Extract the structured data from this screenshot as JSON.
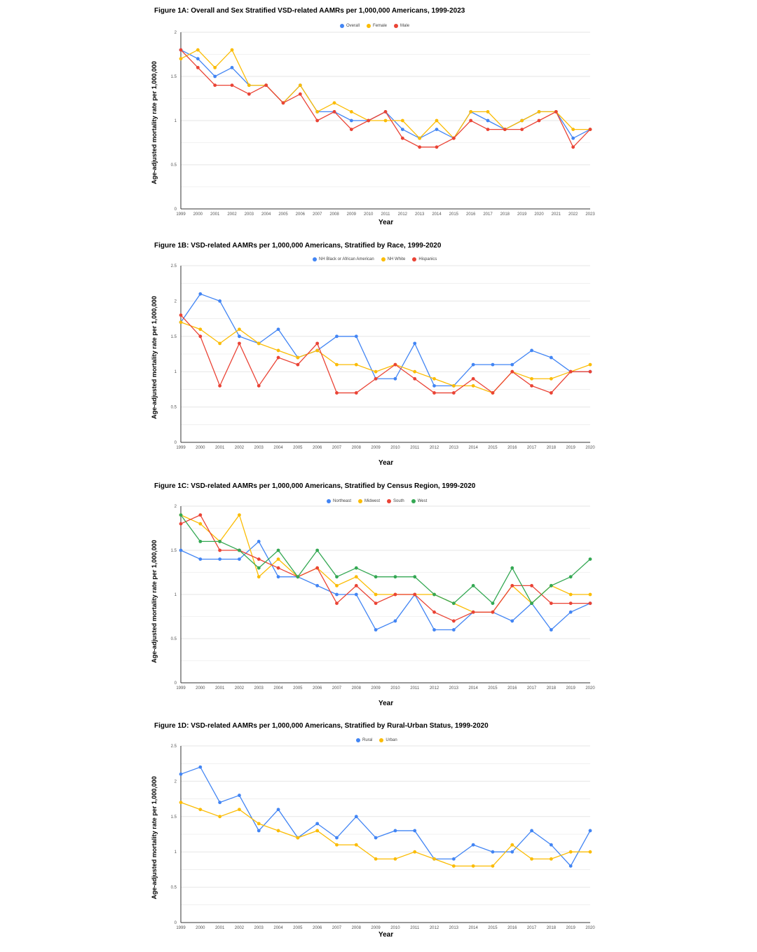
{
  "colors": {
    "blue": "#4285f4",
    "yellow": "#fbbc04",
    "red": "#ea4335",
    "green": "#34a853",
    "grid": "#e6e6e6",
    "axis": "#333333"
  },
  "chart_data": [
    {
      "id": "fig1a",
      "type": "line",
      "title": "Figure 1A: Overall and Sex Stratified VSD-related AAMRs per 1,000,000 Americans, 1999-2023",
      "xlabel": "Year",
      "ylabel": "Age-adjusted mortality rate per 1,000,000",
      "ylim": [
        0,
        2
      ],
      "yticks": [
        "0",
        "0.5",
        "1",
        "1.5",
        "2"
      ],
      "ytick_values": [
        0,
        0.5,
        1,
        1.5,
        2
      ],
      "grid": true,
      "legend_position": "top-center",
      "categories": [
        "1999",
        "2000",
        "2001",
        "2002",
        "2003",
        "2004",
        "2005",
        "2006",
        "2007",
        "2008",
        "2009",
        "2010",
        "2011",
        "2012",
        "2013",
        "2014",
        "2015",
        "2016",
        "2017",
        "2018",
        "2019",
        "2020",
        "2021",
        "2022",
        "2023"
      ],
      "series": [
        {
          "name": "Overall",
          "color": "#4285f4",
          "values": [
            1.8,
            1.7,
            1.5,
            1.6,
            1.4,
            1.4,
            1.2,
            1.4,
            1.1,
            1.1,
            1.0,
            1.0,
            1.1,
            0.9,
            0.8,
            0.9,
            0.8,
            1.1,
            1.0,
            0.9,
            1.0,
            1.1,
            1.1,
            0.8,
            0.9
          ]
        },
        {
          "name": "Female",
          "color": "#fbbc04",
          "values": [
            1.7,
            1.8,
            1.6,
            1.8,
            1.4,
            1.4,
            1.2,
            1.4,
            1.1,
            1.2,
            1.1,
            1.0,
            1.0,
            1.0,
            0.8,
            1.0,
            0.8,
            1.1,
            1.1,
            0.9,
            1.0,
            1.1,
            1.1,
            0.9,
            0.9
          ]
        },
        {
          "name": "Male",
          "color": "#ea4335",
          "values": [
            1.8,
            1.6,
            1.4,
            1.4,
            1.3,
            1.4,
            1.2,
            1.3,
            1.0,
            1.1,
            0.9,
            1.0,
            1.1,
            0.8,
            0.7,
            0.7,
            0.8,
            1.0,
            0.9,
            0.9,
            0.9,
            1.0,
            1.1,
            0.7,
            0.9
          ]
        }
      ]
    },
    {
      "id": "fig1b",
      "type": "line",
      "title": "Figure 1B: VSD-related AAMRs per 1,000,000 Americans, Stratified by Race, 1999-2020",
      "xlabel": "Year",
      "ylabel": "Age-adjusted mortality rate per 1,000,000",
      "ylim": [
        0,
        2.5
      ],
      "yticks": [
        "0",
        "0.5",
        "1",
        "1.5",
        "2",
        "2.5"
      ],
      "ytick_values": [
        0,
        0.5,
        1,
        1.5,
        2,
        2.5
      ],
      "grid": true,
      "legend_position": "top-center",
      "categories": [
        "1999",
        "2000",
        "2001",
        "2002",
        "2003",
        "2004",
        "2005",
        "2006",
        "2007",
        "2008",
        "2009",
        "2010",
        "2011",
        "2012",
        "2013",
        "2014",
        "2015",
        "2016",
        "2017",
        "2018",
        "2019",
        "2020"
      ],
      "series": [
        {
          "name": "NH Black or African American",
          "color": "#4285f4",
          "values": [
            1.7,
            2.1,
            2.0,
            1.5,
            1.4,
            1.6,
            1.2,
            1.3,
            1.5,
            1.5,
            0.9,
            0.9,
            1.4,
            0.8,
            0.8,
            1.1,
            1.1,
            1.1,
            1.3,
            1.2,
            1.0,
            1.0
          ]
        },
        {
          "name": "NH White",
          "color": "#fbbc04",
          "values": [
            1.7,
            1.6,
            1.4,
            1.6,
            1.4,
            1.3,
            1.2,
            1.3,
            1.1,
            1.1,
            1.0,
            1.1,
            1.0,
            0.9,
            0.8,
            0.8,
            0.7,
            1.0,
            0.9,
            0.9,
            1.0,
            1.1
          ]
        },
        {
          "name": "Hispanics",
          "color": "#ea4335",
          "values": [
            1.8,
            1.5,
            0.8,
            1.4,
            0.8,
            1.2,
            1.1,
            1.4,
            0.7,
            0.7,
            0.9,
            1.1,
            0.9,
            0.7,
            0.7,
            0.9,
            0.7,
            1.0,
            0.8,
            0.7,
            1.0,
            1.0
          ]
        }
      ]
    },
    {
      "id": "fig1c",
      "type": "line",
      "title": "Figure 1C: VSD-related AAMRs per 1,000,000 Americans, Stratified by Census Region, 1999-2020",
      "xlabel": "Year",
      "ylabel": "Age-adjusted mortality rate per 1,000,000",
      "ylim": [
        0,
        2
      ],
      "yticks": [
        "0",
        "0.5",
        "1",
        "1.5",
        "2"
      ],
      "ytick_values": [
        0,
        0.5,
        1,
        1.5,
        2
      ],
      "grid": true,
      "legend_position": "top-center",
      "categories": [
        "1999",
        "2000",
        "2001",
        "2002",
        "2003",
        "2004",
        "2005",
        "2006",
        "2007",
        "2008",
        "2009",
        "2010",
        "2011",
        "2012",
        "2013",
        "2014",
        "2015",
        "2016",
        "2017",
        "2018",
        "2019",
        "2020"
      ],
      "series": [
        {
          "name": "Northeast",
          "color": "#4285f4",
          "values": [
            1.5,
            1.4,
            1.4,
            1.4,
            1.6,
            1.2,
            1.2,
            1.1,
            1.0,
            1.0,
            0.6,
            0.7,
            1.0,
            0.6,
            0.6,
            0.8,
            0.8,
            0.7,
            0.9,
            0.6,
            0.8,
            0.9
          ]
        },
        {
          "name": "Midwest",
          "color": "#fbbc04",
          "values": [
            1.9,
            1.8,
            1.6,
            1.9,
            1.2,
            1.4,
            1.2,
            1.3,
            1.1,
            1.2,
            1.0,
            1.0,
            1.0,
            1.0,
            0.9,
            0.8,
            0.8,
            1.1,
            0.9,
            1.1,
            1.0,
            1.0
          ]
        },
        {
          "name": "South",
          "color": "#ea4335",
          "values": [
            1.8,
            1.9,
            1.5,
            1.5,
            1.4,
            1.3,
            1.2,
            1.3,
            0.9,
            1.1,
            0.9,
            1.0,
            1.0,
            0.8,
            0.7,
            0.8,
            0.8,
            1.1,
            1.1,
            0.9,
            0.9,
            0.9
          ]
        },
        {
          "name": "West",
          "color": "#34a853",
          "values": [
            1.9,
            1.6,
            1.6,
            1.5,
            1.3,
            1.5,
            1.2,
            1.5,
            1.2,
            1.3,
            1.2,
            1.2,
            1.2,
            1.0,
            0.9,
            1.1,
            0.9,
            1.3,
            0.9,
            1.1,
            1.2,
            1.4
          ]
        }
      ]
    },
    {
      "id": "fig1d",
      "type": "line",
      "title": "Figure 1D: VSD-related AAMRs per 1,000,000 Americans, Stratified by Rural-Urban Status, 1999-2020",
      "xlabel": "Year",
      "ylabel": "Age-adjusted mortality rate per 1,000,000",
      "ylim": [
        0,
        2.5
      ],
      "yticks": [
        "0",
        "0.5",
        "1",
        "1.5",
        "2",
        "2.5"
      ],
      "ytick_values": [
        0,
        0.5,
        1,
        1.5,
        2,
        2.5
      ],
      "grid": true,
      "legend_position": "top-center",
      "categories": [
        "1999",
        "2000",
        "2001",
        "2002",
        "2003",
        "2004",
        "2005",
        "2006",
        "2007",
        "2008",
        "2009",
        "2010",
        "2011",
        "2012",
        "2013",
        "2014",
        "2015",
        "2016",
        "2017",
        "2018",
        "2019",
        "2020"
      ],
      "series": [
        {
          "name": "Rural",
          "color": "#4285f4",
          "values": [
            2.1,
            2.2,
            1.7,
            1.8,
            1.3,
            1.6,
            1.2,
            1.4,
            1.2,
            1.5,
            1.2,
            1.3,
            1.3,
            0.9,
            0.9,
            1.1,
            1.0,
            1.0,
            1.3,
            1.1,
            0.8,
            1.3
          ]
        },
        {
          "name": "Urban",
          "color": "#fbbc04",
          "values": [
            1.7,
            1.6,
            1.5,
            1.6,
            1.4,
            1.3,
            1.2,
            1.3,
            1.1,
            1.1,
            0.9,
            0.9,
            1.0,
            0.9,
            0.8,
            0.8,
            0.8,
            1.1,
            0.9,
            0.9,
            1.0,
            1.0
          ]
        }
      ]
    }
  ]
}
